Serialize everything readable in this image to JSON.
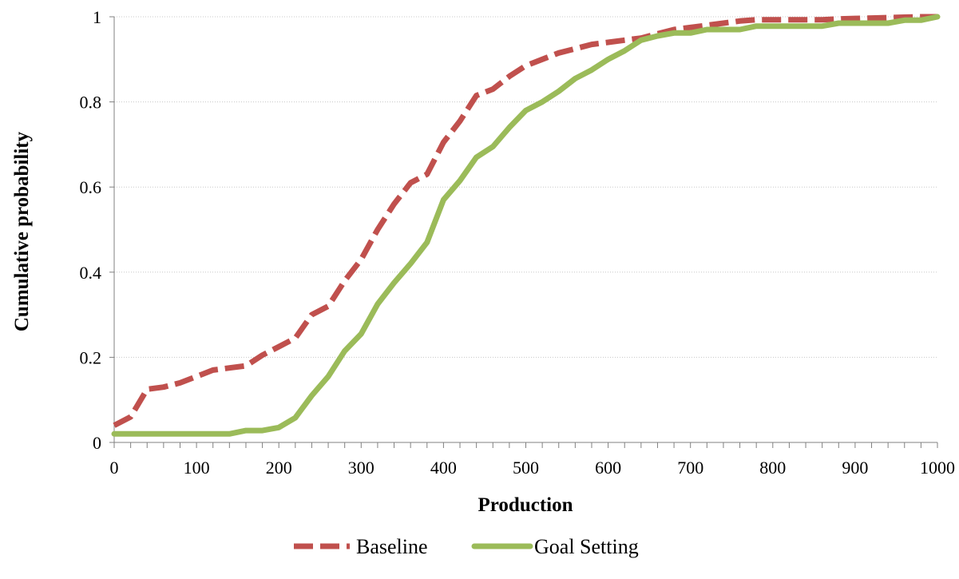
{
  "chart_data": {
    "type": "line",
    "xlabel": "Production",
    "ylabel": "Cumulative probability",
    "xlim": [
      0,
      1000
    ],
    "ylim": [
      0,
      1
    ],
    "x_ticks": [
      "0",
      "100",
      "200",
      "300",
      "400",
      "500",
      "600",
      "700",
      "800",
      "900",
      "1000"
    ],
    "y_ticks": [
      "0",
      "0.2",
      "0.4",
      "0.6",
      "0.8",
      "1"
    ],
    "grid": "horizontal",
    "legend_position": "bottom",
    "series": [
      {
        "name": "Baseline",
        "color": "#c0504d",
        "style": "dashed",
        "x": [
          0,
          20,
          40,
          60,
          80,
          100,
          120,
          140,
          160,
          180,
          200,
          220,
          240,
          260,
          280,
          300,
          320,
          340,
          360,
          380,
          400,
          420,
          440,
          460,
          480,
          500,
          520,
          540,
          560,
          580,
          600,
          620,
          640,
          660,
          680,
          700,
          720,
          740,
          760,
          780,
          800,
          820,
          840,
          860,
          880,
          900,
          920,
          940,
          960,
          980,
          1000
        ],
        "y": [
          0.04,
          0.06,
          0.125,
          0.13,
          0.14,
          0.155,
          0.17,
          0.175,
          0.18,
          0.205,
          0.225,
          0.245,
          0.3,
          0.32,
          0.38,
          0.43,
          0.5,
          0.56,
          0.61,
          0.63,
          0.705,
          0.755,
          0.815,
          0.83,
          0.86,
          0.885,
          0.9,
          0.915,
          0.925,
          0.935,
          0.94,
          0.945,
          0.95,
          0.96,
          0.97,
          0.975,
          0.98,
          0.985,
          0.99,
          0.993,
          0.993,
          0.993,
          0.993,
          0.993,
          0.995,
          0.996,
          0.997,
          0.998,
          0.999,
          1.0,
          1.0
        ]
      },
      {
        "name": "Goal Setting",
        "color": "#9bbb59",
        "style": "solid",
        "x": [
          0,
          20,
          40,
          60,
          80,
          100,
          120,
          140,
          160,
          180,
          200,
          220,
          240,
          260,
          280,
          300,
          320,
          340,
          360,
          380,
          400,
          420,
          440,
          460,
          480,
          500,
          520,
          540,
          560,
          580,
          600,
          620,
          640,
          660,
          680,
          700,
          720,
          740,
          760,
          780,
          800,
          820,
          840,
          860,
          880,
          900,
          920,
          940,
          960,
          980,
          1000
        ],
        "y": [
          0.02,
          0.02,
          0.02,
          0.02,
          0.02,
          0.02,
          0.02,
          0.02,
          0.028,
          0.028,
          0.035,
          0.058,
          0.11,
          0.155,
          0.215,
          0.255,
          0.325,
          0.375,
          0.42,
          0.47,
          0.57,
          0.615,
          0.67,
          0.695,
          0.74,
          0.78,
          0.8,
          0.825,
          0.855,
          0.875,
          0.9,
          0.92,
          0.945,
          0.955,
          0.962,
          0.962,
          0.97,
          0.97,
          0.97,
          0.978,
          0.978,
          0.978,
          0.978,
          0.978,
          0.985,
          0.985,
          0.985,
          0.985,
          0.992,
          0.992,
          1.0
        ]
      }
    ]
  }
}
